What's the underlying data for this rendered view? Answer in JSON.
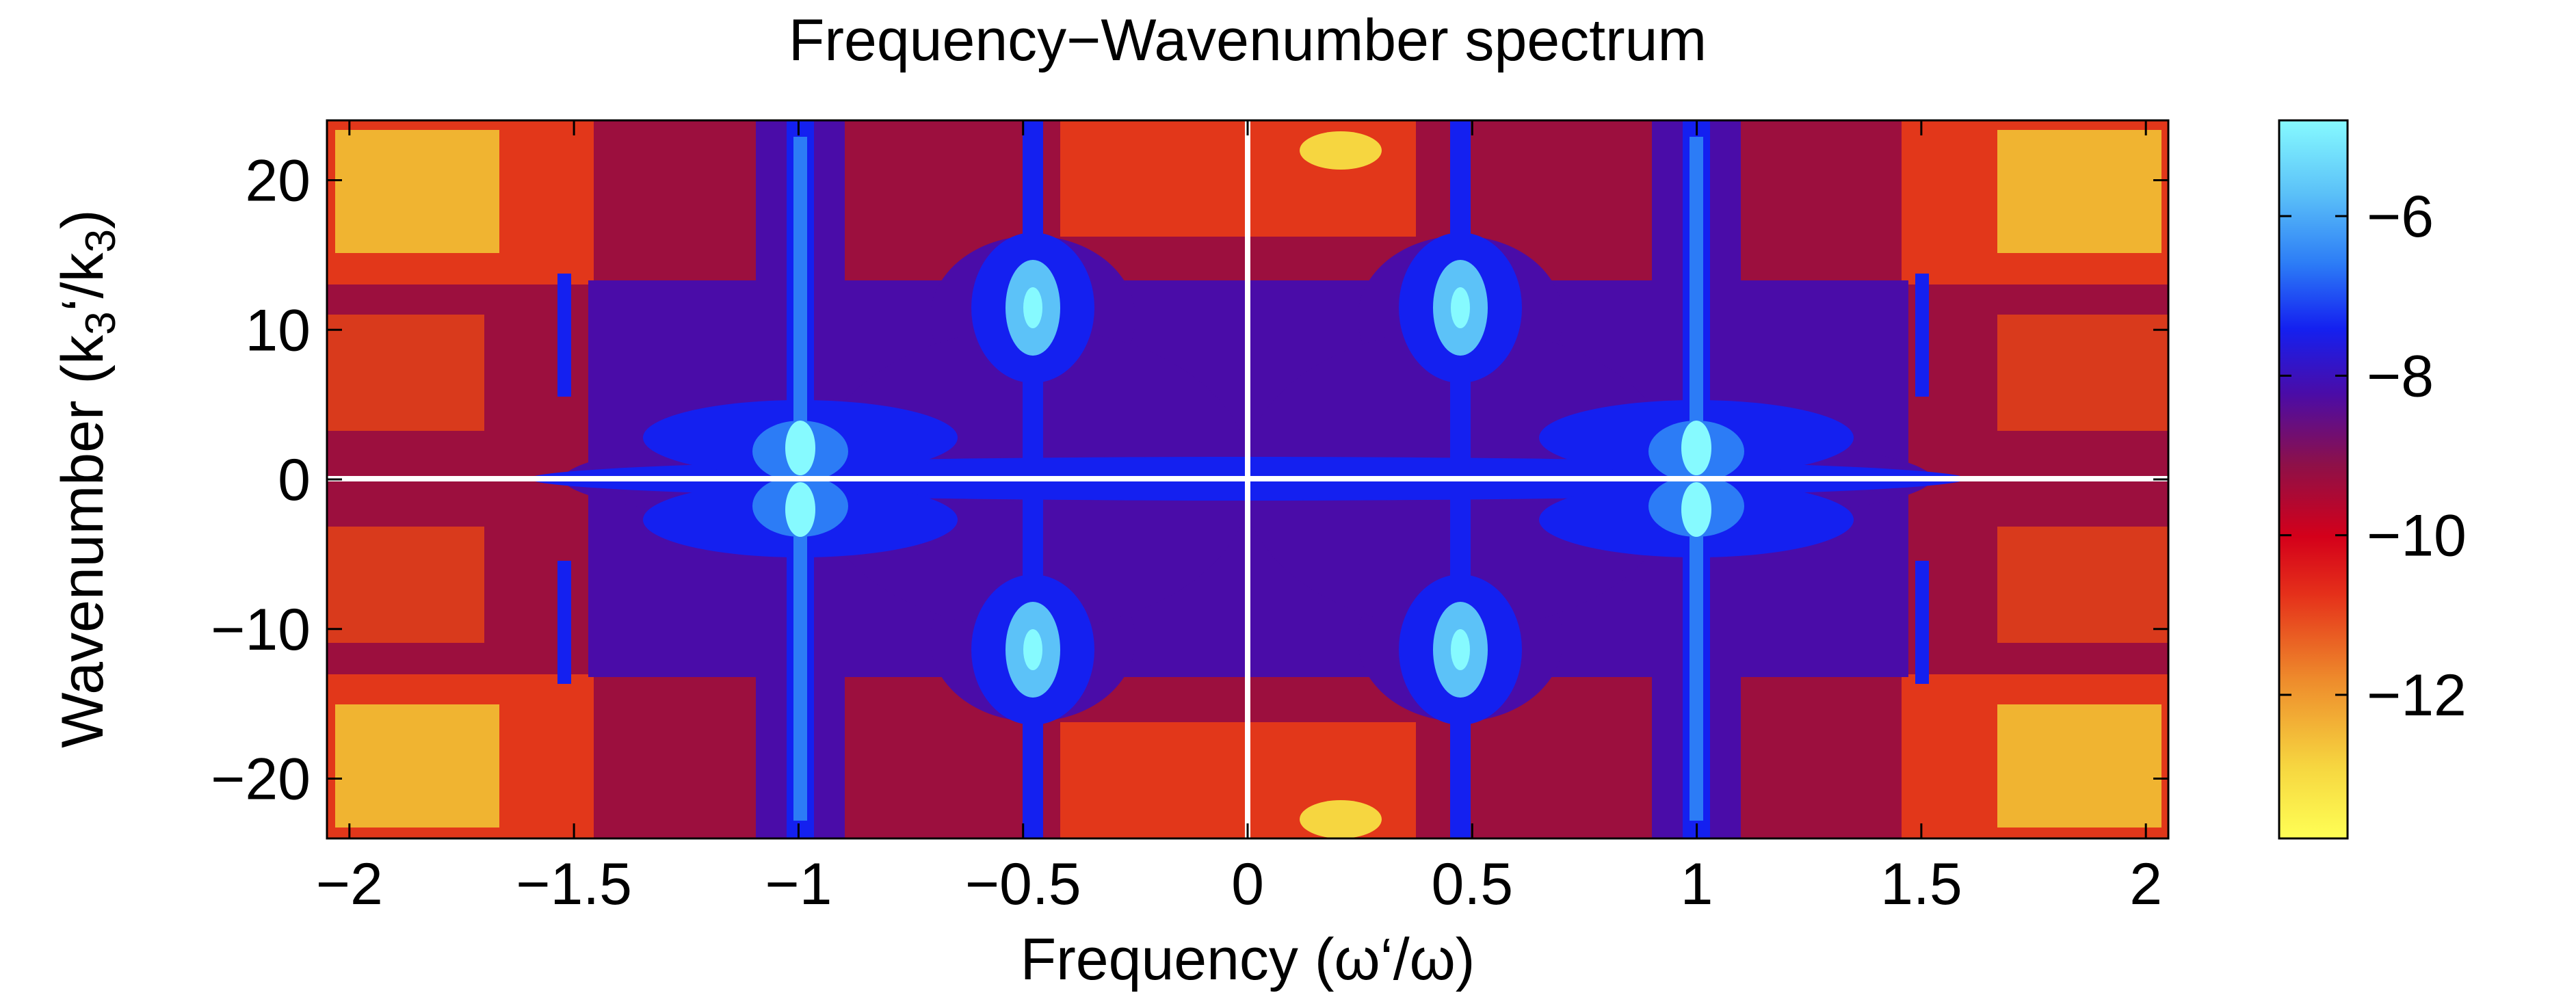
{
  "chart_data": {
    "type": "heatmap",
    "title": "Frequency−Wavenumber spectrum",
    "xlabel": "Frequency (ω‘/ω)",
    "ylabel": {
      "prefix": "Wavenumber (k",
      "sub1": "3",
      "mid": "‘/k",
      "sub2": "3",
      "suffix": ")"
    },
    "xlim": [
      -2.05,
      2.05
    ],
    "ylim": [
      -24,
      24
    ],
    "x_ticks": [
      -2,
      -1.5,
      -1,
      -0.5,
      0,
      0.5,
      1,
      1.5,
      2
    ],
    "x_tick_labels": [
      "−2",
      "−1.5",
      "−1",
      "−0.5",
      "0",
      "0.5",
      "1",
      "1.5",
      "2"
    ],
    "y_ticks": [
      20,
      10,
      0,
      -10,
      -20
    ],
    "y_tick_labels": [
      "20",
      "10",
      "0",
      "−10",
      "−20"
    ],
    "colorbar": {
      "range": [
        -13.8,
        -4.8
      ],
      "ticks": [
        -6,
        -8,
        -10,
        -12
      ],
      "tick_labels": [
        "−6",
        "−8",
        "−10",
        "−12"
      ]
    },
    "features": {
      "peak_frequencies": [
        -1,
        -0.5,
        0.5,
        1
      ],
      "peak_wavenumbers_near_half": [
        11,
        -11
      ],
      "sideband_frequencies": [
        -1.5,
        1.5
      ],
      "white_lines": [
        "frequency = 0",
        "wavenumber = 0"
      ]
    },
    "colors": {
      "background_level": "#9c0f3e",
      "peak_level": "#7ff5ff",
      "low_level": "#ffff55"
    }
  }
}
